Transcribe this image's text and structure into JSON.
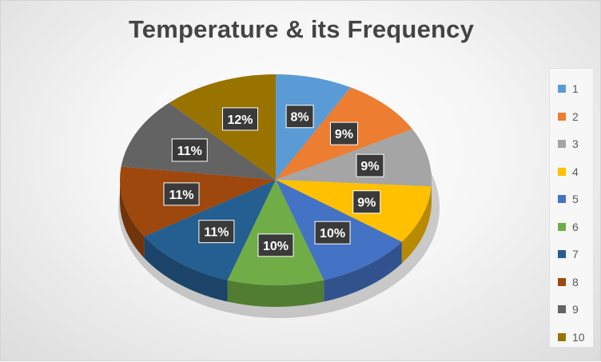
{
  "chart_data": {
    "type": "pie",
    "style": "3d",
    "title": "Temperature & its Frequency",
    "categories": [
      "1",
      "2",
      "3",
      "4",
      "5",
      "6",
      "7",
      "8",
      "9",
      "10"
    ],
    "values": [
      8,
      9,
      9,
      9,
      10,
      10,
      11,
      11,
      11,
      12
    ],
    "data_labels": [
      "8%",
      "9%",
      "9%",
      "9%",
      "10%",
      "10%",
      "11%",
      "11%",
      "11%",
      "12%"
    ],
    "colors": [
      "#5B9BD5",
      "#ED7D31",
      "#A5A5A5",
      "#FFC000",
      "#4472C4",
      "#70AD47",
      "#255E91",
      "#9E480E",
      "#636363",
      "#997300"
    ],
    "legend_position": "right"
  }
}
